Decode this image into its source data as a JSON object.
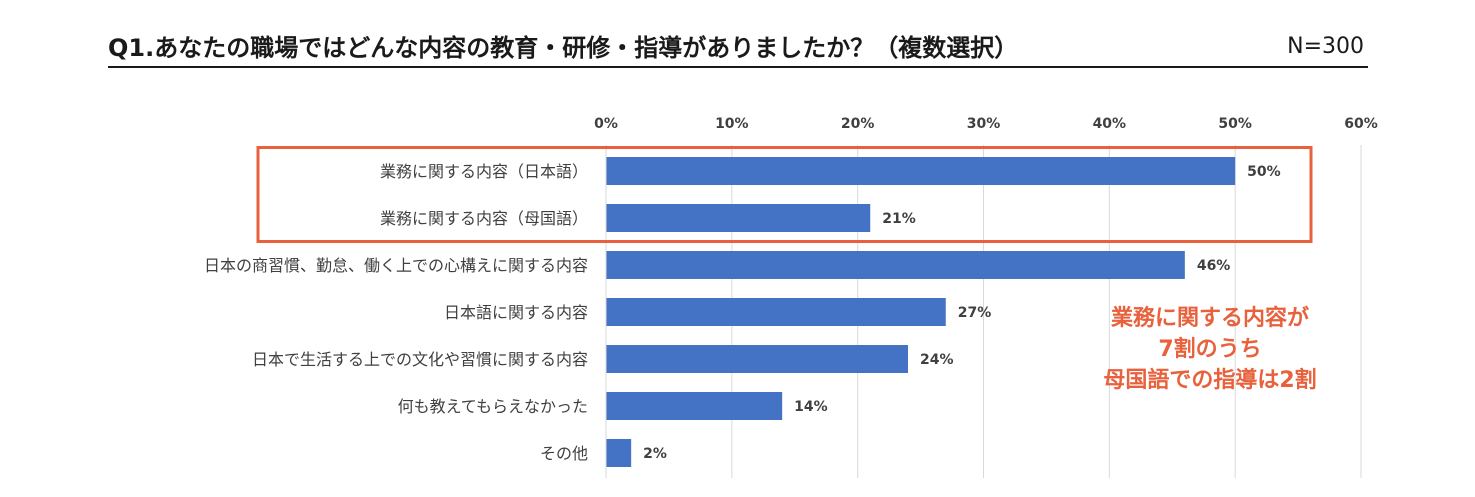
{
  "header": {
    "title": "Q1.あなたの職場ではどんな内容の教育・研修・指導がありましたか？（複数選択）",
    "sample_size": "N=300"
  },
  "chart_data": {
    "type": "bar",
    "orientation": "horizontal",
    "categories": [
      "業務に関する内容（日本語）",
      "業務に関する内容（母国語）",
      "日本の商習慣、勤怠、働く上での心構えに関する内容",
      "日本語に関する内容",
      "日本で生活する上での文化や習慣に関する内容",
      "何も教えてもらえなかった",
      "その他"
    ],
    "values": [
      50,
      21,
      46,
      27,
      24,
      14,
      2
    ],
    "value_labels": [
      "50%",
      "21%",
      "46%",
      "27%",
      "24%",
      "14%",
      "2%"
    ],
    "x_ticks": [
      "0%",
      "10%",
      "20%",
      "30%",
      "40%",
      "50%",
      "60%"
    ],
    "xlim": [
      0,
      60
    ],
    "unit": "%",
    "grid": true,
    "axis_position": "top",
    "highlighted_categories": [
      0,
      1
    ],
    "colors": {
      "bar": "#4472c4",
      "highlight": "#e8613c",
      "grid": "#d9d9d9",
      "text": "#404040"
    }
  },
  "callout": {
    "lines": [
      "業務に関する内容が",
      "7割のうち",
      "母国語での指導は2割"
    ]
  }
}
